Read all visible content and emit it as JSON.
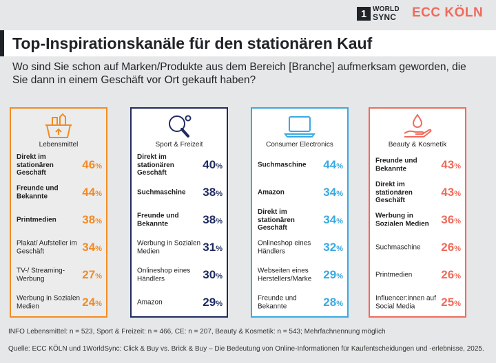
{
  "header": {
    "worldsync_mark": "1",
    "worldsync_line1": "WORLD",
    "worldsync_line2": "SYNC",
    "ecc_logo": "ECC KÖLN"
  },
  "title": "Top-Inspirationskanäle für den stationären Kauf",
  "subtitle": "Wo sind Sie schon auf Marken/Produkte aus dem Bereich [Branche] aufmerksam geworden, die Sie dann in einem Geschäft vor Ort gekauft haben?",
  "percent_sign": "%",
  "colors": {
    "lebensmittel": "#f28b23",
    "sport": "#1f2a60",
    "electronics": "#39a9e1",
    "beauty": "#ef6b5b",
    "dark": "#1f2226"
  },
  "chart_data": {
    "type": "table",
    "panels": [
      {
        "name": "Lebensmittel",
        "icon": "grocery-basket-icon",
        "color": "#f28b23",
        "items": [
          {
            "label": "Direkt im stationären Geschäft",
            "value": 46,
            "bold": true
          },
          {
            "label": "Freunde und Bekannte",
            "value": 44,
            "bold": true
          },
          {
            "label": "Printmedien",
            "value": 38,
            "bold": true
          },
          {
            "label": "Plakat/ Aufsteller im Geschäft",
            "value": 34,
            "bold": false
          },
          {
            "label": "TV-/ Streaming-Werbung",
            "value": 27,
            "bold": false
          },
          {
            "label": "Werbung in Sozialen Medien",
            "value": 24,
            "bold": false
          }
        ]
      },
      {
        "name": "Sport & Freizeit",
        "icon": "ping-pong-icon",
        "color": "#1f2a60",
        "items": [
          {
            "label": "Direkt im stationären Geschäft",
            "value": 40,
            "bold": true
          },
          {
            "label": "Suchmaschine",
            "value": 38,
            "bold": true
          },
          {
            "label": "Freunde und Bekannte",
            "value": 38,
            "bold": true
          },
          {
            "label": "Werbung in Sozialen Medien",
            "value": 31,
            "bold": false
          },
          {
            "label": "Onlineshop eines Händlers",
            "value": 30,
            "bold": false
          },
          {
            "label": "Amazon",
            "value": 29,
            "bold": false
          }
        ]
      },
      {
        "name": "Consumer Electronics",
        "icon": "laptop-icon",
        "color": "#39a9e1",
        "items": [
          {
            "label": "Suchmaschine",
            "value": 44,
            "bold": true
          },
          {
            "label": "Amazon",
            "value": 34,
            "bold": true
          },
          {
            "label": "Direkt im stationären Geschäft",
            "value": 34,
            "bold": true
          },
          {
            "label": "Onlineshop eines Händlers",
            "value": 32,
            "bold": false
          },
          {
            "label": "Webseiten eines Herstellers/Marke",
            "value": 29,
            "bold": false
          },
          {
            "label": "Freunde und Bekannte",
            "value": 28,
            "bold": false
          }
        ]
      },
      {
        "name": "Beauty & Kosmetik",
        "icon": "hand-drop-icon",
        "color": "#ef6b5b",
        "items": [
          {
            "label": "Freunde und Bekannte",
            "value": 43,
            "bold": true
          },
          {
            "label": "Direkt im stationären Geschäft",
            "value": 43,
            "bold": true
          },
          {
            "label": "Werbung in Sozialen Medien",
            "value": 36,
            "bold": true
          },
          {
            "label": "Suchmaschine",
            "value": 26,
            "bold": false
          },
          {
            "label": "Printmedien",
            "value": 26,
            "bold": false
          },
          {
            "label": "Influencer:innen auf Social Media",
            "value": 25,
            "bold": false
          }
        ]
      }
    ]
  },
  "info": "INFO  Lebensmittel: n = 523, Sport & Freizeit: n = 466, CE: n = 207, Beauty & Kosmetik: n = 543; Mehrfachnennung möglich",
  "source": "Quelle: ECC KÖLN und 1WorldSync: Click & Buy vs. Brick & Buy – Die Bedeutung von Online-Informationen für Kaufentscheidungen und -erlebnisse, 2025."
}
